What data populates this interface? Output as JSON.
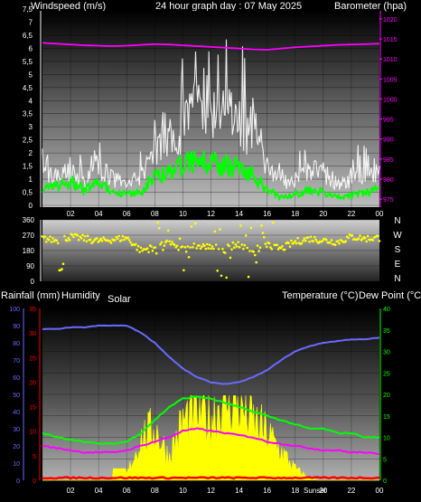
{
  "header": {
    "wind_label": "Windspeed (m/s)",
    "title": "24 hour graph day : 07 May 2025",
    "baro_label": "Barometer (hpa)"
  },
  "lower_header": {
    "rain_label": "Rainfall (mm)",
    "humidity_label": "Humidity",
    "solar_label": "Solar",
    "temp_label": "Temperature (°C)",
    "dew_label": "Dew Point (°C)"
  },
  "annotations": {
    "sunset_label": "Sunset"
  },
  "compass": [
    "N",
    "W",
    "S",
    "E",
    "N"
  ],
  "colors": {
    "windspeed": "#ffffff",
    "windgust": "#cccccc",
    "wind_avg": "#00ff00",
    "barometer": "#ff00ff",
    "direction": "#ffff00",
    "humidity": "#6a6aff",
    "temperature": "#00ff00",
    "dewpoint": "#ff00ff",
    "rain": "#ff0000",
    "solar": "#ffff00"
  },
  "chart_data": [
    {
      "type": "line",
      "name": "wind_barometer",
      "title": "24 hour graph day : 07 May 2025",
      "ylabel": "Windspeed (m/s)",
      "y2label": "Barometer (hpa)",
      "x_ticks": [
        "02",
        "04",
        "06",
        "08",
        "10",
        "12",
        "14",
        "16",
        "18",
        "20",
        "22",
        "00"
      ],
      "ylim": [
        0,
        7.5
      ],
      "y_ticks": [
        "0",
        "0,5",
        "1",
        "1,5",
        "2",
        "2,5",
        "3",
        "3,5",
        "4",
        "4,5",
        "5",
        "5,5",
        "6",
        "6,5",
        "7",
        "7,5"
      ],
      "y2lim": [
        973,
        1022
      ],
      "y2_ticks": [
        "975",
        "980",
        "985",
        "990",
        "995",
        "1000",
        "1005",
        "1010",
        "1015",
        "1020"
      ],
      "x": [
        0,
        1,
        2,
        3,
        4,
        5,
        6,
        7,
        8,
        9,
        10,
        11,
        12,
        13,
        14,
        15,
        16,
        17,
        18,
        19,
        20,
        21,
        22,
        23,
        24
      ],
      "series": [
        {
          "key": "gust",
          "values": [
            1.5,
            1.3,
            1.6,
            1.0,
            1.8,
            1.2,
            0.9,
            1.2,
            2.5,
            3.0,
            3.6,
            4.8,
            4.2,
            4.0,
            3.6,
            3.4,
            1.6,
            1.0,
            1.2,
            1.8,
            1.5,
            1.0,
            1.2,
            1.6,
            1.6
          ]
        },
        {
          "key": "speed",
          "values": [
            0.6,
            0.7,
            0.9,
            0.6,
            0.8,
            0.6,
            0.4,
            0.5,
            1.1,
            1.3,
            1.5,
            1.8,
            1.6,
            1.5,
            1.4,
            1.2,
            0.6,
            0.3,
            0.4,
            0.6,
            0.5,
            0.3,
            0.4,
            0.5,
            0.6
          ]
        },
        {
          "key": "barometer",
          "values": [
            1014.0,
            1013.8,
            1013.6,
            1013.4,
            1013.3,
            1013.2,
            1013.3,
            1013.5,
            1013.7,
            1013.6,
            1013.4,
            1013.2,
            1013.0,
            1012.8,
            1012.6,
            1012.4,
            1012.3,
            1012.6,
            1012.9,
            1013.1,
            1013.3,
            1013.5,
            1013.6,
            1013.7,
            1013.8
          ]
        }
      ]
    },
    {
      "type": "scatter",
      "name": "wind_direction",
      "ylim": [
        0,
        360
      ],
      "y_ticks": [
        "0",
        "90",
        "180",
        "270",
        "360"
      ],
      "x": [
        0,
        1,
        2,
        3,
        4,
        5,
        6,
        7,
        8,
        9,
        10,
        11,
        12,
        13,
        14,
        15,
        16,
        17,
        18,
        19,
        20,
        21,
        22,
        23,
        24
      ],
      "values": [
        250,
        240,
        260,
        250,
        235,
        245,
        255,
        180,
        200,
        230,
        180,
        210,
        200,
        190,
        220,
        180,
        210,
        190,
        230,
        250,
        240,
        230,
        260,
        250,
        255
      ]
    },
    {
      "type": "line",
      "name": "temp_hum_solar_rain",
      "ylabel_left_outer": "Rainfall (mm)",
      "ylabel_left_inner": "Humidity",
      "ylabel_center": "Solar",
      "ylabel_right": "Temperature (°C)",
      "ylabel_right2": "Dew Point (°C)",
      "x_ticks": [
        "02",
        "04",
        "06",
        "08",
        "10",
        "12",
        "14",
        "16",
        "18",
        "20",
        "22",
        "00"
      ],
      "humidity_ticks": [
        "0",
        "10",
        "20",
        "30",
        "40",
        "50",
        "60",
        "70",
        "80",
        "90",
        "100"
      ],
      "rain_ticks": [
        "0",
        "5",
        "10",
        "15",
        "20",
        "25",
        "30",
        "35"
      ],
      "temp_ticks": [
        "0",
        "5",
        "10",
        "15",
        "20",
        "25",
        "30",
        "35",
        "40"
      ],
      "humidity_lim": [
        0,
        100
      ],
      "rain_lim": [
        0,
        35
      ],
      "temp_lim": [
        0,
        40
      ],
      "x": [
        0,
        1,
        2,
        3,
        4,
        5,
        6,
        7,
        8,
        9,
        10,
        11,
        12,
        13,
        14,
        15,
        16,
        17,
        18,
        19,
        20,
        21,
        22,
        23,
        24
      ],
      "series": [
        {
          "key": "humidity",
          "values": [
            88,
            88,
            89,
            89,
            90,
            90,
            90,
            86,
            80,
            72,
            65,
            60,
            57,
            56,
            57,
            60,
            64,
            70,
            75,
            78,
            80,
            81,
            82,
            82,
            83
          ]
        },
        {
          "key": "temperature",
          "values": [
            11,
            10,
            9.5,
            9,
            8.5,
            8.5,
            9,
            11,
            14,
            17,
            19,
            19.5,
            19,
            18,
            17,
            16,
            15,
            14,
            13,
            12,
            12,
            11,
            11,
            10,
            10
          ]
        },
        {
          "key": "dewpoint",
          "values": [
            8,
            7.5,
            7,
            6.5,
            6.5,
            6.5,
            7,
            8,
            9,
            10,
            11.5,
            12,
            11.5,
            11,
            10.5,
            10,
            9,
            8.5,
            8,
            7.5,
            7,
            7,
            6.5,
            6.5,
            6
          ]
        },
        {
          "key": "rain",
          "values": [
            0.5,
            0.5,
            0.5,
            0.5,
            0.5,
            0.5,
            0.5,
            0.5,
            0.5,
            0.5,
            0.5,
            0.5,
            0.5,
            0.5,
            0.5,
            0.5,
            0.5,
            0.5,
            0.5,
            0.5,
            0.5,
            0.5,
            0.5,
            0.5,
            0.5
          ]
        },
        {
          "key": "solar",
          "values": [
            0,
            0,
            0,
            0,
            0,
            0,
            5,
            35,
            45,
            20,
            50,
            60,
            55,
            70,
            65,
            50,
            40,
            25,
            10,
            2,
            0,
            0,
            0,
            0,
            0
          ]
        }
      ]
    }
  ]
}
